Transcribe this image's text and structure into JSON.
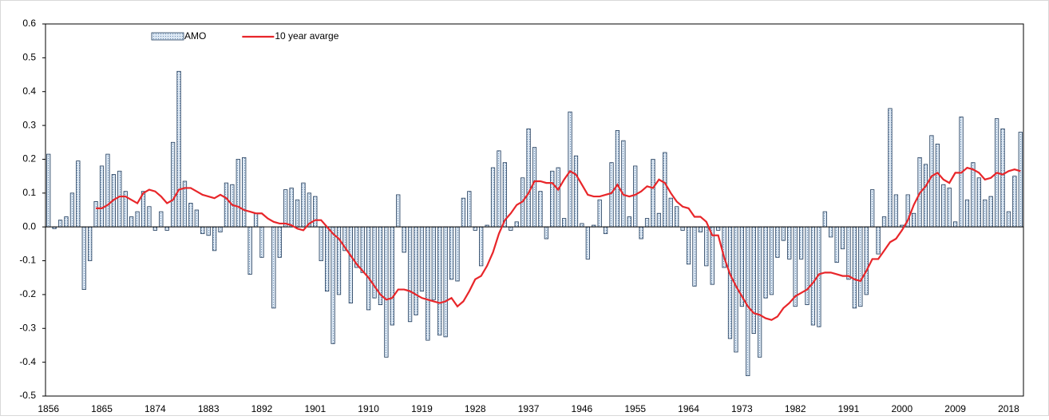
{
  "chart_data": {
    "type": "bar-line",
    "categories": [
      "1856",
      null,
      null,
      null,
      null,
      null,
      null,
      null,
      null,
      "1865",
      null,
      null,
      null,
      null,
      null,
      null,
      null,
      null,
      "1874",
      null,
      null,
      null,
      null,
      null,
      null,
      null,
      null,
      "1883",
      null,
      null,
      null,
      null,
      null,
      null,
      null,
      null,
      "1892",
      null,
      null,
      null,
      null,
      null,
      null,
      null,
      null,
      "1901",
      null,
      null,
      null,
      null,
      null,
      null,
      null,
      null,
      "1910",
      null,
      null,
      null,
      null,
      null,
      null,
      null,
      null,
      "1919",
      null,
      null,
      null,
      null,
      null,
      null,
      null,
      null,
      "1928",
      null,
      null,
      null,
      null,
      null,
      null,
      null,
      null,
      "1937",
      null,
      null,
      null,
      null,
      null,
      null,
      null,
      null,
      "1946",
      null,
      null,
      null,
      null,
      null,
      null,
      null,
      null,
      "1955",
      null,
      null,
      null,
      null,
      null,
      null,
      null,
      null,
      "1964",
      null,
      null,
      null,
      null,
      null,
      null,
      null,
      null,
      "1973",
      null,
      null,
      null,
      null,
      null,
      null,
      null,
      null,
      "1982",
      null,
      null,
      null,
      null,
      null,
      null,
      null,
      null,
      "1991",
      null,
      null,
      null,
      null,
      null,
      null,
      null,
      null,
      "2000",
      null,
      null,
      null,
      null,
      null,
      null,
      null,
      null,
      "2009",
      null,
      null,
      null,
      null,
      null,
      null,
      null,
      null,
      "2018",
      null,
      null
    ],
    "series": [
      {
        "name": "AMO",
        "type": "bar",
        "color": "#a9c4e0",
        "values": [
          0.215,
          -0.005,
          0.02,
          0.03,
          0.1,
          0.195,
          -0.185,
          -0.1,
          0.075,
          0.18,
          0.215,
          0.155,
          0.165,
          0.105,
          0.03,
          0.045,
          0.105,
          0.06,
          -0.01,
          0.045,
          -0.01,
          0.25,
          0.46,
          0.135,
          0.07,
          0.05,
          -0.02,
          -0.025,
          -0.07,
          -0.015,
          0.13,
          0.125,
          0.2,
          0.205,
          -0.14,
          0.04,
          -0.09,
          0,
          -0.24,
          -0.09,
          0.11,
          0.115,
          0.08,
          0.13,
          0.1,
          0.09,
          -0.1,
          -0.19,
          -0.345,
          -0.2,
          -0.07,
          -0.225,
          -0.12,
          -0.135,
          -0.245,
          -0.21,
          -0.23,
          -0.385,
          -0.29,
          0.095,
          -0.075,
          -0.28,
          -0.26,
          -0.19,
          -0.335,
          -0.215,
          -0.32,
          -0.325,
          -0.155,
          -0.16,
          0.085,
          0.105,
          -0.01,
          -0.115,
          0.005,
          0.175,
          0.225,
          0.19,
          -0.01,
          0.015,
          0.145,
          0.29,
          0.235,
          0.105,
          -0.035,
          0.165,
          0.175,
          0.025,
          0.34,
          0.21,
          0.01,
          -0.095,
          0.005,
          0.08,
          -0.02,
          0.19,
          0.285,
          0.255,
          0.03,
          0.18,
          -0.035,
          0.025,
          0.2,
          0.04,
          0.22,
          0.085,
          0.06,
          -0.01,
          -0.11,
          -0.175,
          -0.015,
          -0.115,
          -0.17,
          -0.01,
          -0.12,
          -0.33,
          -0.37,
          -0.235,
          -0.44,
          -0.315,
          -0.385,
          -0.21,
          -0.2,
          -0.09,
          -0.04,
          -0.095,
          -0.235,
          -0.095,
          -0.23,
          -0.29,
          -0.295,
          0.045,
          -0.03,
          -0.105,
          -0.065,
          -0.155,
          -0.24,
          -0.235,
          -0.2,
          0.11,
          -0.08,
          0.03,
          0.35,
          0.095,
          0.005,
          0.095,
          0.04,
          0.205,
          0.185,
          0.27,
          0.245,
          0.125,
          0.115,
          0.015,
          0.325,
          0.08,
          0.19,
          0.145,
          0.08,
          0.09,
          0.32,
          0.29,
          0.045,
          0.15,
          0.28
        ]
      },
      {
        "name": "10 year avarge",
        "type": "line",
        "color": "#e8262a",
        "values": [
          null,
          null,
          null,
          null,
          null,
          null,
          null,
          null,
          0.055,
          0.055,
          0.065,
          0.08,
          0.09,
          0.09,
          0.08,
          0.07,
          0.1,
          0.11,
          0.105,
          0.09,
          0.07,
          0.08,
          0.11,
          0.115,
          0.115,
          0.105,
          0.095,
          0.09,
          0.085,
          0.095,
          0.085,
          0.065,
          0.06,
          0.05,
          0.045,
          0.04,
          0.04,
          0.025,
          0.015,
          0.01,
          0.01,
          0.005,
          -0.005,
          -0.01,
          0.01,
          0.02,
          0.02,
          0,
          -0.02,
          -0.035,
          -0.06,
          -0.085,
          -0.11,
          -0.13,
          -0.15,
          -0.175,
          -0.2,
          -0.215,
          -0.21,
          -0.185,
          -0.185,
          -0.19,
          -0.2,
          -0.21,
          -0.215,
          -0.22,
          -0.225,
          -0.22,
          -0.21,
          -0.235,
          -0.22,
          -0.19,
          -0.155,
          -0.145,
          -0.115,
          -0.075,
          -0.02,
          0.02,
          0.04,
          0.065,
          0.075,
          0.1,
          0.135,
          0.135,
          0.13,
          0.13,
          0.11,
          0.14,
          0.165,
          0.155,
          0.125,
          0.095,
          0.09,
          0.09,
          0.095,
          0.1,
          0.125,
          0.095,
          0.09,
          0.095,
          0.105,
          0.12,
          0.115,
          0.14,
          0.13,
          0.1,
          0.075,
          0.06,
          0.055,
          0.03,
          0.03,
          0.015,
          -0.025,
          -0.025,
          -0.09,
          -0.14,
          -0.175,
          -0.205,
          -0.235,
          -0.255,
          -0.26,
          -0.27,
          -0.275,
          -0.265,
          -0.24,
          -0.225,
          -0.205,
          -0.195,
          -0.185,
          -0.165,
          -0.14,
          -0.135,
          -0.135,
          -0.14,
          -0.145,
          -0.145,
          -0.155,
          -0.16,
          -0.13,
          -0.095,
          -0.095,
          -0.07,
          -0.045,
          -0.035,
          -0.01,
          0.02,
          0.065,
          0.1,
          0.12,
          0.15,
          0.16,
          0.14,
          0.13,
          0.16,
          0.16,
          0.175,
          0.17,
          0.16,
          0.14,
          0.145,
          0.16,
          0.155,
          0.165,
          0.17,
          0.165
        ]
      }
    ],
    "ylim": [
      -0.5,
      0.6
    ],
    "yticks": [
      -0.5,
      -0.4,
      -0.3,
      -0.2,
      -0.1,
      {
        "value": 0,
        "label": "0.0"
      },
      0.1,
      0.2,
      0.3,
      0.4,
      0.5,
      0.6
    ],
    "legend": "top"
  }
}
